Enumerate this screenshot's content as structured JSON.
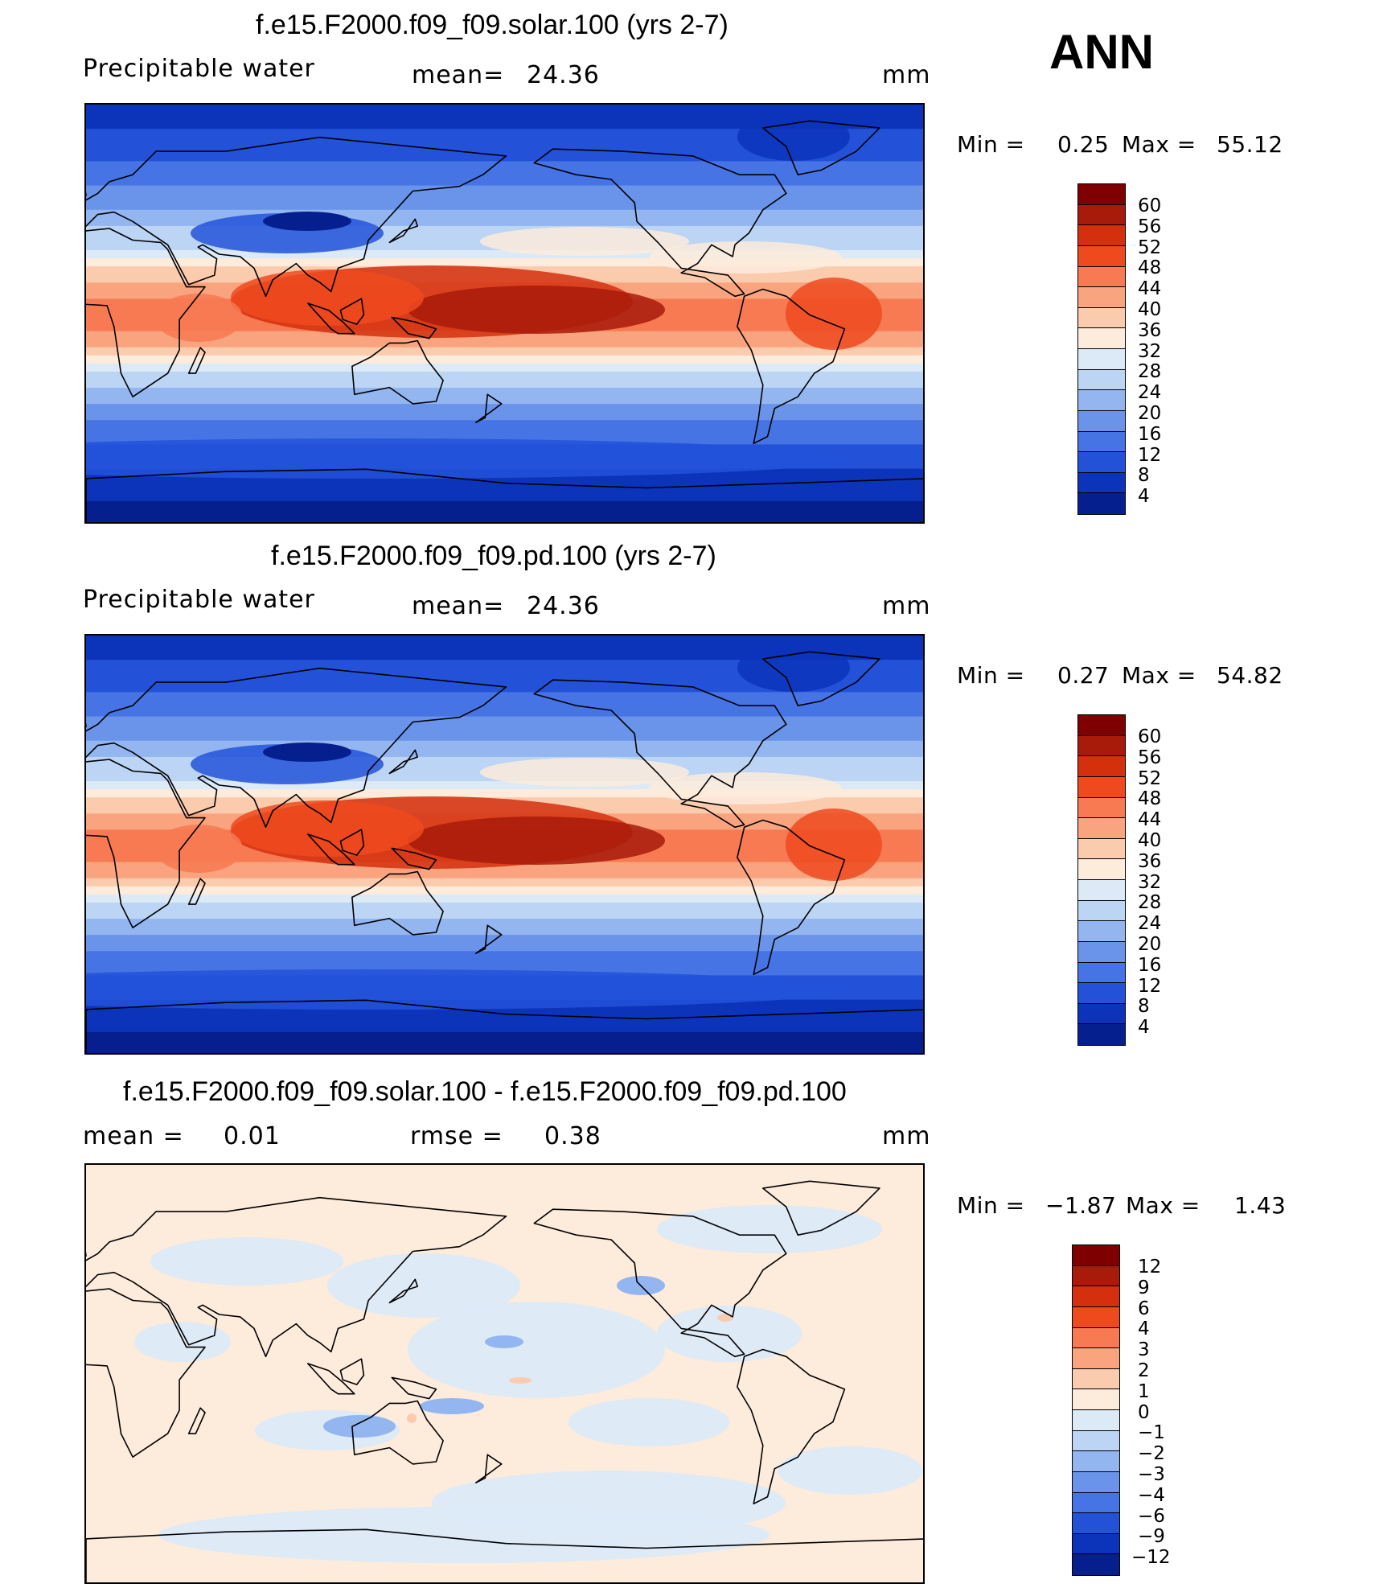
{
  "season": "ANN",
  "panels": [
    {
      "title": "f.e15.F2000.f09_f09.solar.100 (yrs 2-7)",
      "left_label": "Precipitable  water",
      "mid_label": "mean=",
      "mid_value": "24.36",
      "unit": "mm",
      "min_label": "Min  =",
      "min_value": "0.25",
      "max_label": "Max  =",
      "max_value": "55.12"
    },
    {
      "title": "f.e15.F2000.f09_f09.pd.100 (yrs 2-7)",
      "left_label": "Precipitable  water",
      "mid_label": "mean=",
      "mid_value": "24.36",
      "unit": "mm",
      "min_label": "Min  =",
      "min_value": "0.27",
      "max_label": "Max  =",
      "max_value": "54.82"
    },
    {
      "title": "f.e15.F2000.f09_f09.solar.100 - f.e15.F2000.f09_f09.pd.100",
      "left_label": "mean  =",
      "left_value": "0.01",
      "mid_label": "rmse  =",
      "mid_value": "0.38",
      "unit": "mm",
      "min_label": "Min  =",
      "min_value": "−1.87",
      "max_label": "Max  =",
      "max_value": "1.43"
    }
  ],
  "colorbars": {
    "absolute": {
      "labels": [
        "60",
        "56",
        "52",
        "48",
        "44",
        "40",
        "36",
        "32",
        "28",
        "24",
        "20",
        "16",
        "12",
        "8",
        "4"
      ],
      "colors": [
        "#7f0000",
        "#a81b0a",
        "#d4300e",
        "#ee4a1e",
        "#f77a52",
        "#f9a47f",
        "#fbcbae",
        "#fdebdc",
        "#dceaf7",
        "#bcd5f4",
        "#93b5f0",
        "#6a93ea",
        "#4774e4",
        "#2352d9",
        "#0c34bb",
        "#061f8e"
      ]
    },
    "difference": {
      "labels": [
        "12",
        "9",
        "6",
        "4",
        "3",
        "2",
        "1",
        "0",
        "−1",
        "−2",
        "−3",
        "−4",
        "−6",
        "−9",
        "−12"
      ],
      "colors": [
        "#7f0000",
        "#a81b0a",
        "#d4300e",
        "#ee4a1e",
        "#f77a52",
        "#f9a47f",
        "#fbcbae",
        "#fdebdc",
        "#dceaf7",
        "#bcd5f4",
        "#93b5f0",
        "#6a93ea",
        "#4774e4",
        "#2352d9",
        "#0c34bb",
        "#061f8e"
      ]
    }
  },
  "chart_data": [
    {
      "type": "heatmap",
      "title": "f.e15.F2000.f09_f09.solar.100 (yrs 2-7)",
      "variable": "Precipitable  water",
      "units": "mm",
      "mean": 24.36,
      "min": 0.25,
      "max": 55.12,
      "contour_levels": [
        4,
        8,
        12,
        16,
        20,
        24,
        28,
        32,
        36,
        40,
        44,
        48,
        52,
        56,
        60
      ],
      "zonal_profile": {
        "lat": [
          90,
          75,
          60,
          45,
          30,
          15,
          0,
          -15,
          -30,
          -45,
          -60,
          -75,
          -90
        ],
        "value": [
          5,
          9,
          14,
          20,
          27,
          40,
          49,
          38,
          24,
          15,
          10,
          5,
          2
        ]
      }
    },
    {
      "type": "heatmap",
      "title": "f.e15.F2000.f09_f09.pd.100 (yrs 2-7)",
      "variable": "Precipitable  water",
      "units": "mm",
      "mean": 24.36,
      "min": 0.27,
      "max": 54.82,
      "contour_levels": [
        4,
        8,
        12,
        16,
        20,
        24,
        28,
        32,
        36,
        40,
        44,
        48,
        52,
        56,
        60
      ],
      "zonal_profile": {
        "lat": [
          90,
          75,
          60,
          45,
          30,
          15,
          0,
          -15,
          -30,
          -45,
          -60,
          -75,
          -90
        ],
        "value": [
          5,
          9,
          14,
          20,
          27,
          40,
          49,
          38,
          24,
          15,
          10,
          5,
          2
        ]
      }
    },
    {
      "type": "heatmap",
      "title": "f.e15.F2000.f09_f09.solar.100 - f.e15.F2000.f09_f09.pd.100",
      "units": "mm",
      "mean": 0.01,
      "rmse": 0.38,
      "min": -1.87,
      "max": 1.43,
      "contour_levels": [
        -12,
        -9,
        -6,
        -4,
        -3,
        -2,
        -1,
        0,
        1,
        2,
        3,
        4,
        6,
        9,
        12
      ]
    }
  ]
}
